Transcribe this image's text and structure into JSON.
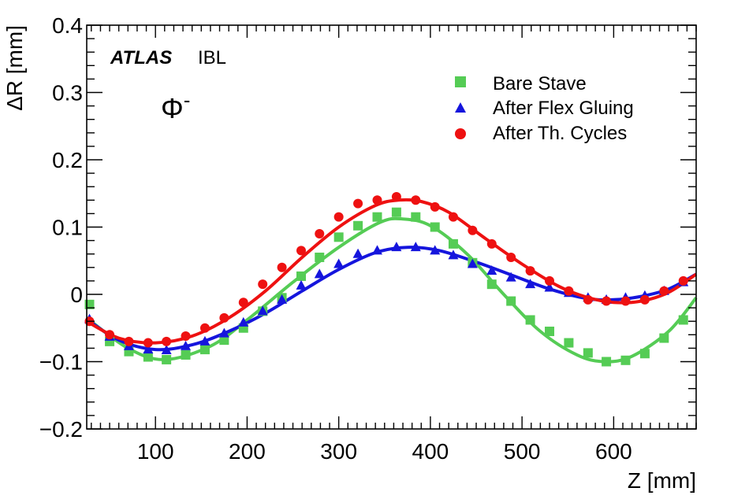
{
  "chart_data": {
    "type": "scatter",
    "xlabel": "Z [mm]",
    "ylabel": "ΔR [mm]",
    "xlim": [
      25,
      690
    ],
    "ylim": [
      -0.2,
      0.4
    ],
    "xticks": [
      100,
      200,
      300,
      400,
      500,
      600
    ],
    "yticks": [
      -0.2,
      -0.1,
      0,
      0.1,
      0.2,
      0.3,
      0.4
    ],
    "xtick_labels": [
      "100",
      "200",
      "300",
      "400",
      "500",
      "600"
    ],
    "ytick_labels": [
      "−0.2",
      "−0.1",
      "0",
      "0.1",
      "0.2",
      "0.3",
      "0.4"
    ],
    "grid": false,
    "legend_position": "top-right",
    "annotations": {
      "experiment": "ATLAS",
      "detector": "IBL",
      "phi": "Φ",
      "phi_superscript": "-"
    },
    "series": [
      {
        "name": "Bare Stave",
        "marker": "square",
        "color": "#55cc55",
        "x": [
          28,
          50,
          71,
          92,
          112,
          133,
          154,
          175,
          196,
          217,
          238,
          259,
          279,
          300,
          321,
          342,
          363,
          384,
          405,
          425,
          446,
          467,
          488,
          509,
          530,
          551,
          572,
          592,
          613,
          634,
          655,
          676
        ],
        "y": [
          -0.015,
          -0.07,
          -0.085,
          -0.093,
          -0.097,
          -0.09,
          -0.082,
          -0.068,
          -0.05,
          -0.025,
          -0.005,
          0.027,
          0.055,
          0.085,
          0.102,
          0.115,
          0.122,
          0.115,
          0.1,
          0.075,
          0.047,
          0.015,
          -0.01,
          -0.038,
          -0.055,
          -0.072,
          -0.087,
          -0.1,
          -0.098,
          -0.088,
          -0.065,
          -0.038
        ],
        "fit": [
          [
            25,
            -0.035
          ],
          [
            70,
            -0.08
          ],
          [
            110,
            -0.097
          ],
          [
            160,
            -0.077
          ],
          [
            200,
            -0.038
          ],
          [
            250,
            0.018
          ],
          [
            300,
            0.07
          ],
          [
            345,
            0.107
          ],
          [
            370,
            0.112
          ],
          [
            400,
            0.102
          ],
          [
            440,
            0.06
          ],
          [
            480,
            0.0
          ],
          [
            520,
            -0.055
          ],
          [
            560,
            -0.09
          ],
          [
            590,
            -0.1
          ],
          [
            620,
            -0.092
          ],
          [
            660,
            -0.055
          ],
          [
            690,
            -0.005
          ]
        ]
      },
      {
        "name": "After Flex Gluing",
        "marker": "triangle",
        "color": "#1515dd",
        "x": [
          28,
          50,
          71,
          92,
          112,
          133,
          154,
          175,
          196,
          217,
          238,
          259,
          279,
          300,
          321,
          342,
          363,
          384,
          405,
          425,
          446,
          467,
          488,
          509,
          530,
          551,
          572,
          592,
          613,
          634,
          655,
          676
        ],
        "y": [
          -0.037,
          -0.063,
          -0.077,
          -0.082,
          -0.083,
          -0.077,
          -0.07,
          -0.058,
          -0.042,
          -0.025,
          -0.008,
          0.013,
          0.03,
          0.045,
          0.06,
          0.065,
          0.07,
          0.07,
          0.065,
          0.058,
          0.045,
          0.035,
          0.025,
          0.015,
          0.01,
          0.002,
          -0.005,
          -0.008,
          -0.005,
          -0.002,
          0.005,
          0.018
        ],
        "fit": [
          [
            25,
            -0.037
          ],
          [
            60,
            -0.068
          ],
          [
            100,
            -0.082
          ],
          [
            140,
            -0.075
          ],
          [
            180,
            -0.055
          ],
          [
            220,
            -0.028
          ],
          [
            260,
            0.005
          ],
          [
            300,
            0.037
          ],
          [
            340,
            0.062
          ],
          [
            375,
            0.07
          ],
          [
            410,
            0.065
          ],
          [
            450,
            0.048
          ],
          [
            490,
            0.028
          ],
          [
            530,
            0.008
          ],
          [
            570,
            -0.006
          ],
          [
            600,
            -0.008
          ],
          [
            630,
            -0.003
          ],
          [
            660,
            0.008
          ],
          [
            690,
            0.03
          ]
        ]
      },
      {
        "name": "After Th. Cycles",
        "marker": "circle",
        "color": "#ee1111",
        "x": [
          28,
          50,
          71,
          92,
          112,
          133,
          154,
          175,
          196,
          217,
          238,
          259,
          279,
          300,
          321,
          342,
          363,
          384,
          405,
          425,
          446,
          467,
          488,
          509,
          530,
          551,
          572,
          592,
          613,
          634,
          655,
          676
        ],
        "y": [
          -0.04,
          -0.06,
          -0.07,
          -0.072,
          -0.07,
          -0.062,
          -0.05,
          -0.035,
          -0.012,
          0.015,
          0.04,
          0.065,
          0.09,
          0.115,
          0.135,
          0.14,
          0.145,
          0.14,
          0.13,
          0.115,
          0.095,
          0.075,
          0.055,
          0.035,
          0.02,
          0.005,
          -0.008,
          -0.01,
          -0.01,
          -0.008,
          0.005,
          0.02
        ],
        "fit": [
          [
            25,
            -0.04
          ],
          [
            60,
            -0.065
          ],
          [
            100,
            -0.072
          ],
          [
            140,
            -0.062
          ],
          [
            180,
            -0.035
          ],
          [
            220,
            0.005
          ],
          [
            260,
            0.055
          ],
          [
            300,
            0.1
          ],
          [
            340,
            0.132
          ],
          [
            365,
            0.14
          ],
          [
            390,
            0.138
          ],
          [
            420,
            0.122
          ],
          [
            460,
            0.083
          ],
          [
            500,
            0.045
          ],
          [
            540,
            0.012
          ],
          [
            570,
            -0.004
          ],
          [
            600,
            -0.012
          ],
          [
            630,
            -0.01
          ],
          [
            660,
            0.003
          ],
          [
            690,
            0.03
          ]
        ]
      }
    ]
  }
}
